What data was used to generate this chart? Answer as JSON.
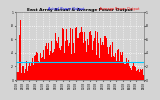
{
  "title": "East Array Actual & Average Power Output",
  "legend_actual": "Actual Power Output",
  "legend_avg": "Average Power Output",
  "background_color": "#d4d4d4",
  "plot_bg_color": "#d4d4d4",
  "bar_color": "#ff0000",
  "avg_line_color": "#00ccff",
  "grid_color": "#ffffff",
  "title_color": "#000000",
  "actual_label_color": "#0000ff",
  "avg_label_color": "#ff0000",
  "ylim_max": 1.0,
  "yticks": [
    0.0,
    0.2,
    0.4,
    0.6,
    0.8,
    1.0
  ],
  "ytick_labels": [
    "0",
    ".2",
    ".4",
    ".6",
    ".8",
    "1"
  ],
  "num_bars": 140,
  "avg_line_y": 0.27,
  "spike_index": 4,
  "spike_value": 1.0
}
